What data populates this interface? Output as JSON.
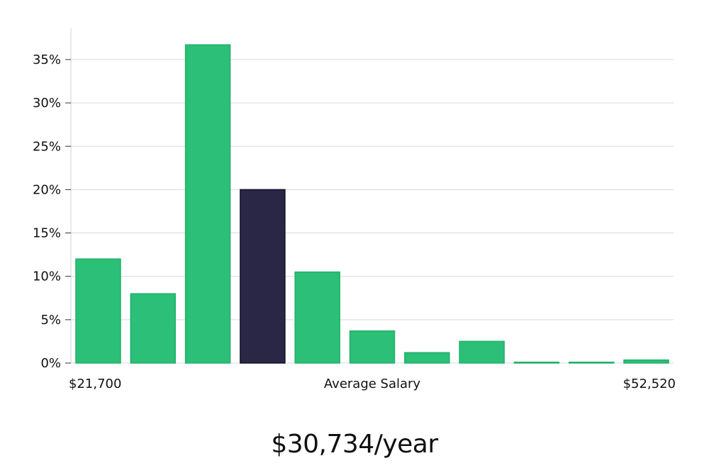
{
  "chart_data": {
    "type": "bar",
    "title": "",
    "xlabel": "Average Salary",
    "ylabel": "",
    "x_min_label": "$21,700",
    "x_max_label": "$52,520",
    "ylim": [
      0,
      38
    ],
    "y_ticks": [
      0,
      5,
      10,
      15,
      20,
      25,
      30,
      35
    ],
    "y_tick_labels": [
      "0%",
      "5%",
      "10%",
      "15%",
      "20%",
      "25%",
      "30%",
      "35%"
    ],
    "values": [
      12.0,
      8.0,
      36.7,
      20.0,
      10.5,
      3.7,
      1.2,
      2.5,
      0.05,
      0.05,
      0.35
    ],
    "highlight_index": 3,
    "grid": true
  },
  "colors": {
    "bar": "#2bbf77",
    "bar_stroke": "#22b06c",
    "highlight": "#2a2646",
    "highlight_stroke": "#14122a",
    "grid": "#d9d9d9",
    "axis": "#d0d0d0"
  },
  "salary_display": "$30,734/year"
}
